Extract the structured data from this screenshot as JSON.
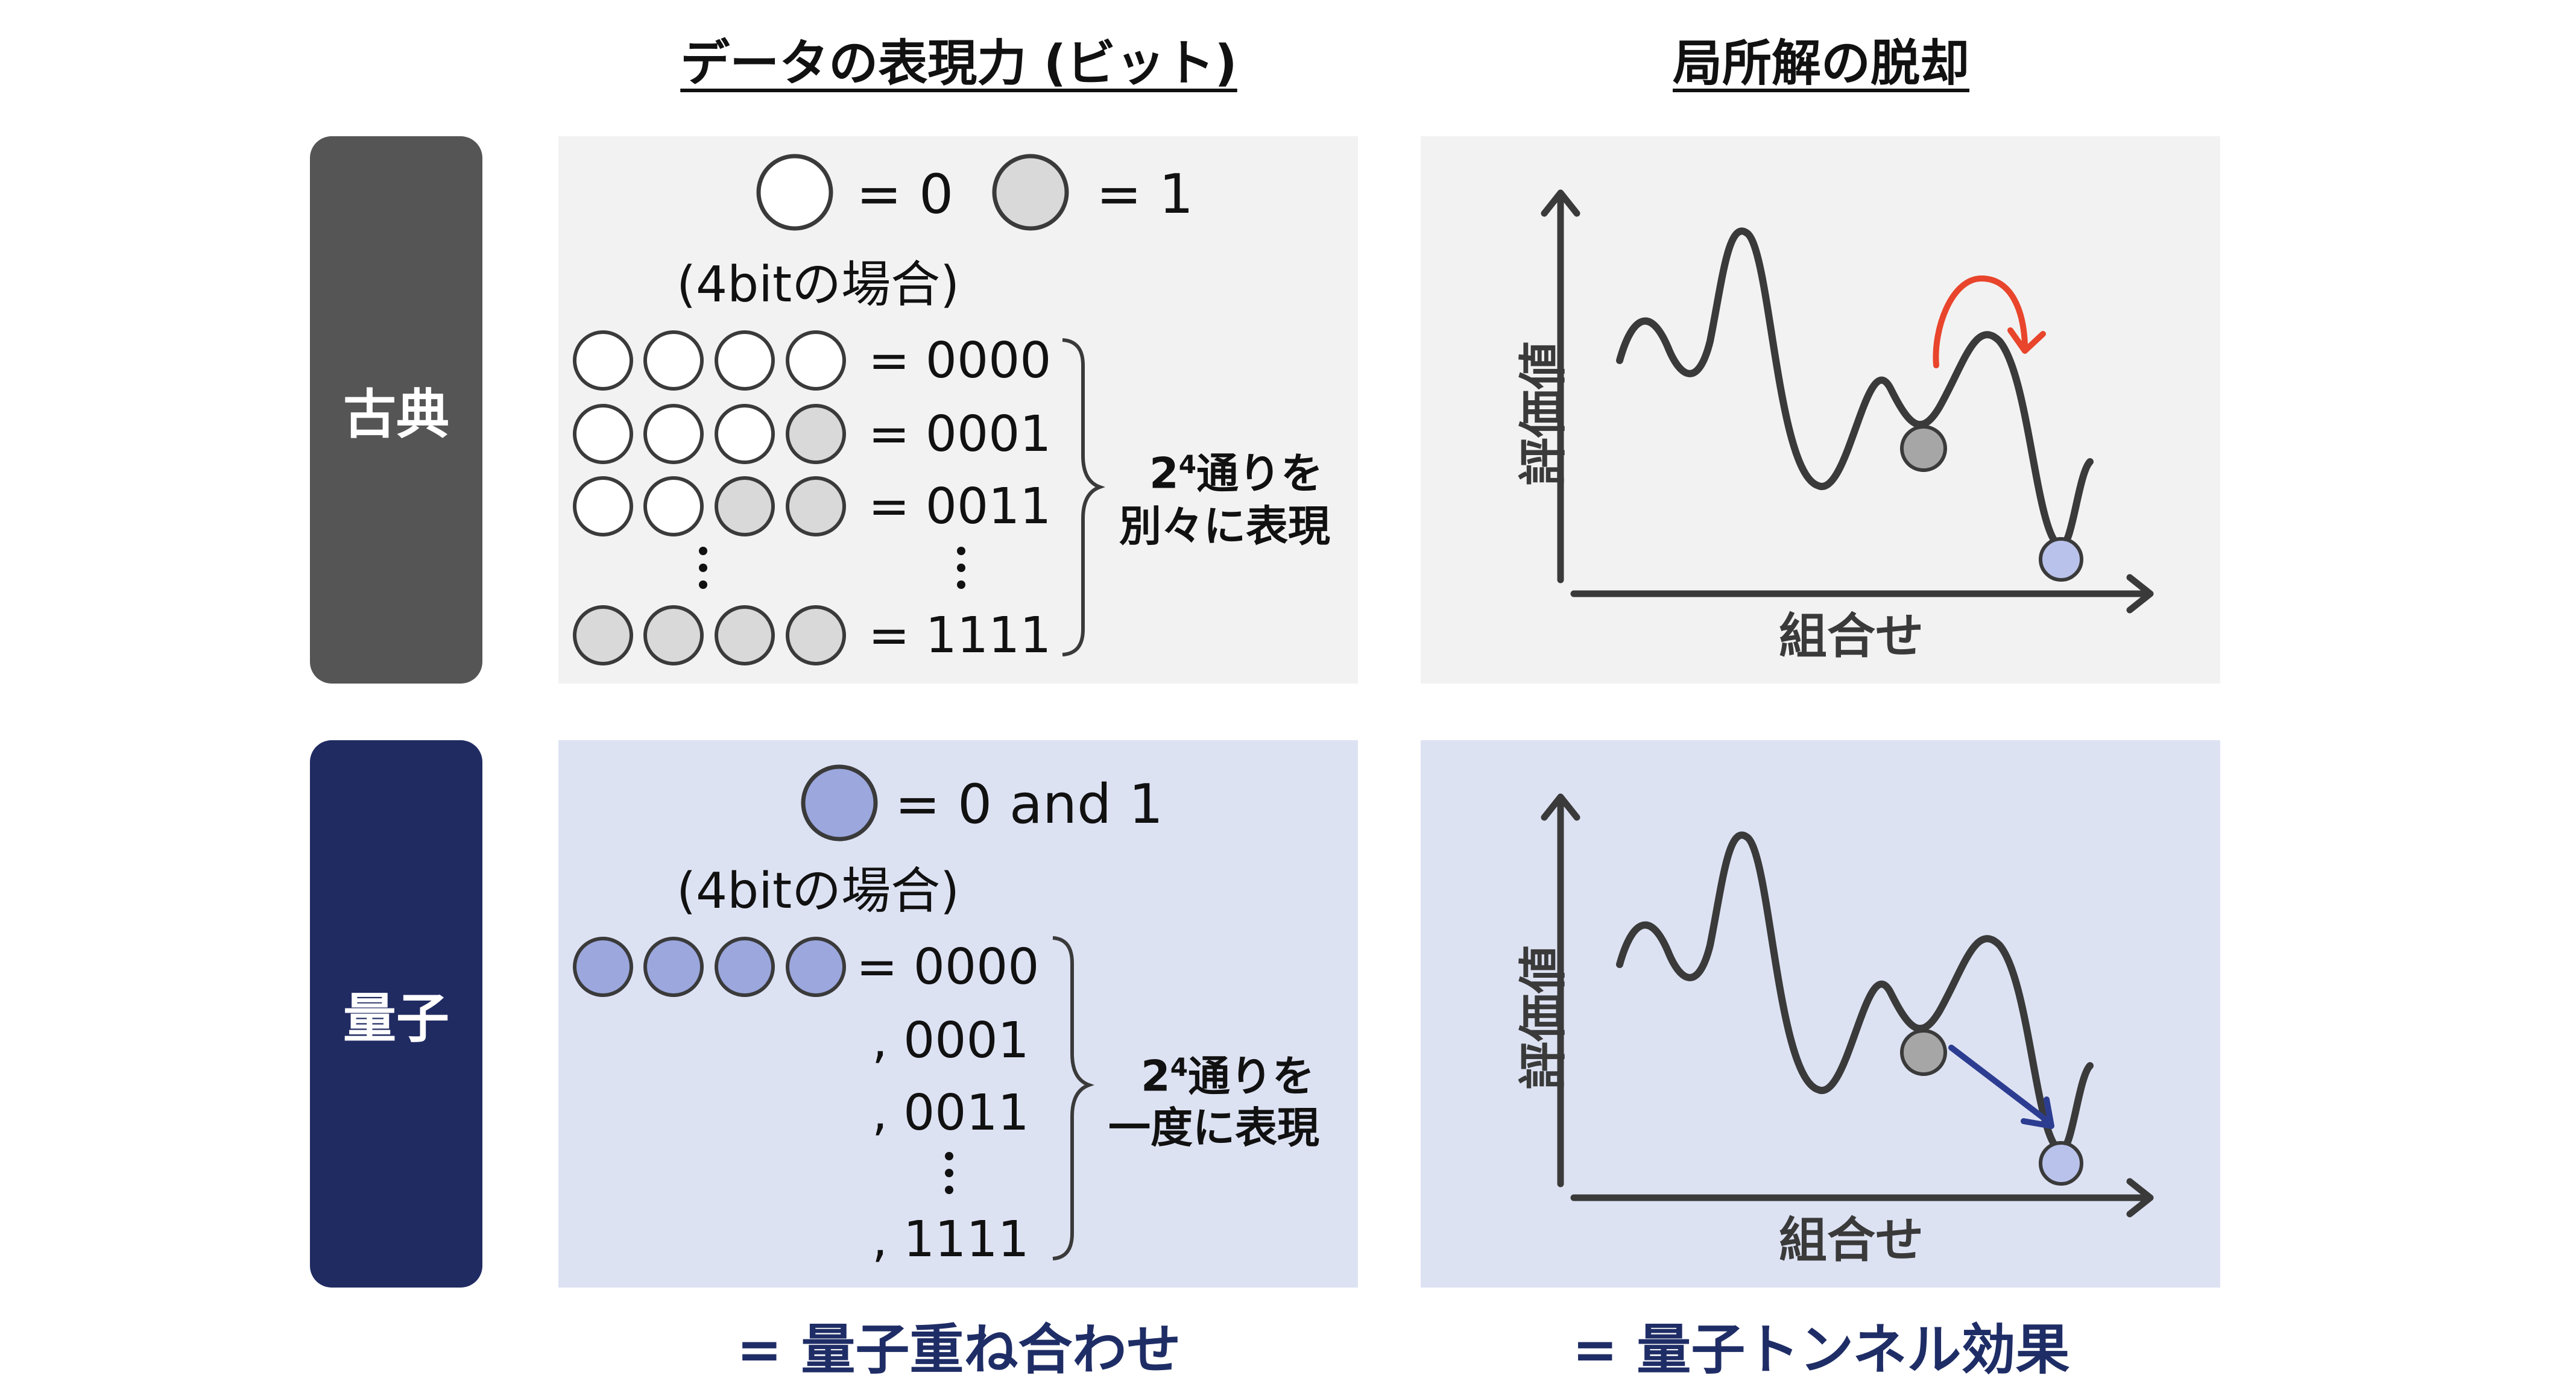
{
  "headers": {
    "left": "データの表現力 (ビット)",
    "right": "局所解の脱却"
  },
  "rows": {
    "classical": {
      "label": "古典",
      "color": "#555555"
    },
    "quantum": {
      "label": "量子",
      "color": "#202b62"
    }
  },
  "classical_bits": {
    "legend_zero": "= 0",
    "legend_one": "= 1",
    "case_note": "(4bitの場合)",
    "values": [
      "= 0000",
      "= 0001",
      "= 0011",
      "= 1111"
    ],
    "brace_line1_base": "2",
    "brace_line1_sup": "4",
    "brace_line1_rest": "通りを",
    "brace_line2": "別々に表現"
  },
  "quantum_bits": {
    "legend": "= 0 and 1",
    "case_note": "(4bitの場合)",
    "values": [
      "= 0000",
      ", 0001",
      ", 0011",
      ", 1111"
    ],
    "brace_line1_base": "2",
    "brace_line1_sup": "4",
    "brace_line1_rest": "通りを",
    "brace_line2": "一度に表現"
  },
  "graphs": {
    "ylabel": "評価値",
    "xlabel": "組合せ"
  },
  "captions": {
    "left": "= 量子重ね合わせ",
    "right": "= 量子トンネル効果"
  },
  "colors": {
    "panel_gray": "#f2f2f2",
    "panel_blue": "#dde2f3",
    "bit_zero": "#ffffff",
    "bit_one": "#d9d9d9",
    "qubit": "#9ba7dd",
    "red_arrow": "#e8452c",
    "blue_arrow": "#2c3d91",
    "ball_gray": "#a6a6a6",
    "ball_blue": "#b9c2ea"
  }
}
